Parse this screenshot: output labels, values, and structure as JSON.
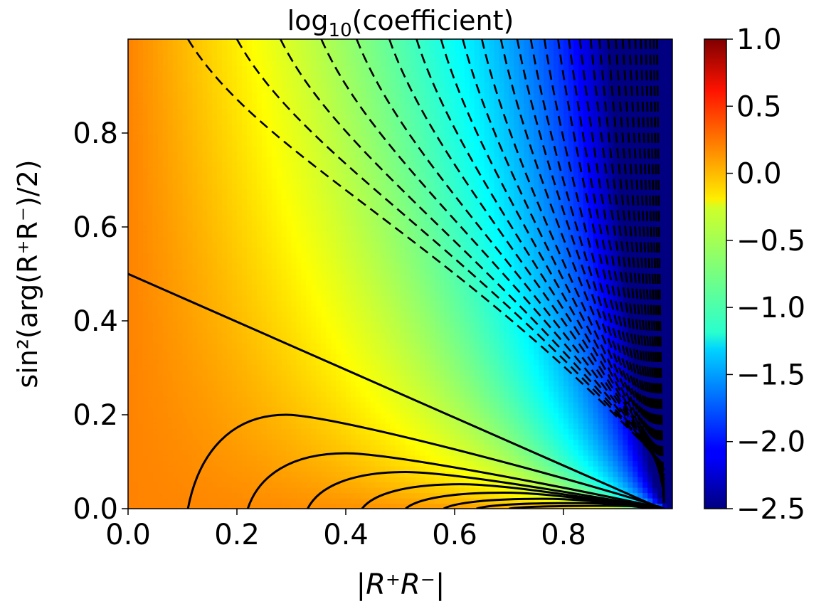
{
  "chart_data": {
    "type": "heatmap",
    "title": "log10(coefficient)",
    "title_parts": {
      "base": "log",
      "sub": "10",
      "rest": "(coefficient)"
    },
    "xlabel": "|R⁺R⁻|",
    "ylabel": "sin²(arg(R⁺R⁻)/2)",
    "xlim": [
      0.0,
      1.0
    ],
    "ylim": [
      0.0,
      1.0
    ],
    "x_ticks": [
      0.0,
      0.2,
      0.4,
      0.6,
      0.8
    ],
    "y_ticks": [
      0.0,
      0.2,
      0.4,
      0.6,
      0.8
    ],
    "x_tick_labels": [
      "0.0",
      "0.2",
      "0.4",
      "0.6",
      "0.8"
    ],
    "y_tick_labels": [
      "0.0",
      "0.2",
      "0.4",
      "0.6",
      "0.8"
    ],
    "colorbar": {
      "colormap": "jet",
      "range": [
        -2.5,
        1.0
      ],
      "ticks": [
        1.0,
        0.5,
        0.0,
        -0.5,
        -1.0,
        -1.5,
        -2.0,
        -2.5
      ],
      "tick_labels": [
        "1.0",
        "0.5",
        "0.0",
        "−0.5",
        "−1.0",
        "−1.5",
        "−2.0",
        "−2.5"
      ]
    },
    "contours": {
      "solid_levels": "positive (≥ 0)",
      "dashed_levels": "negative (< 0)",
      "color": "#000000"
    },
    "grid": false
  }
}
